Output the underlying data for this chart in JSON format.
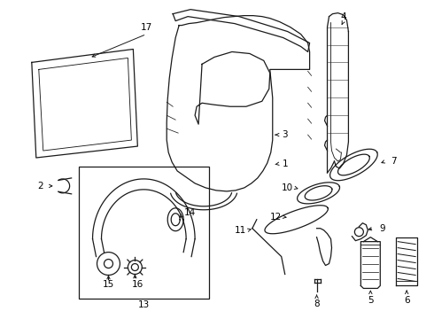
{
  "bg_color": "#ffffff",
  "line_color": "#1a1a1a",
  "text_color": "#000000",
  "figsize": [
    4.9,
    3.6
  ],
  "dpi": 100
}
